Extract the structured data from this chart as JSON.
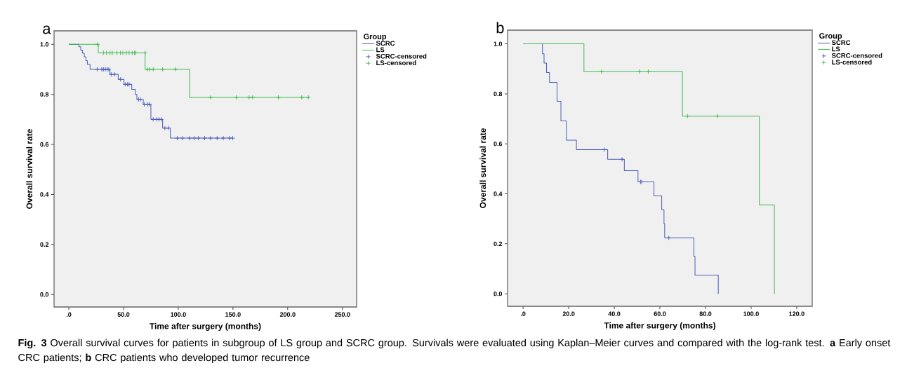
{
  "chart_data": [
    {
      "type": "step",
      "title": "a",
      "xlabel": "Time after surgery (months)",
      "ylabel": "Overall survival rate",
      "legend_title": "Group",
      "legend": "right",
      "xlim": [
        -13.5,
        263
      ],
      "ylim": [
        -0.05,
        1.054
      ],
      "xticks": [
        {
          "value": 0,
          "label": ".0"
        },
        {
          "value": 50,
          "label": "50.0"
        },
        {
          "value": 100,
          "label": "100.0"
        },
        {
          "value": 150,
          "label": "150.0"
        },
        {
          "value": 200,
          "label": "200.0"
        },
        {
          "value": 250,
          "label": "250.0"
        }
      ],
      "yticks": [
        {
          "value": 0,
          "label": "0.0"
        },
        {
          "value": 0.2,
          "label": "0.2"
        },
        {
          "value": 0.4,
          "label": "0.4"
        },
        {
          "value": 0.6,
          "label": "0.6"
        },
        {
          "value": 0.8,
          "label": "0.8"
        },
        {
          "value": 1,
          "label": "1.0"
        }
      ],
      "annotations": [
        "**Fig. 3** Overall survival curves for patients in subgroup of LS group and SCRC group. Survivals were evaluated using Kaplan–Meier curves and compared with the log-rank test. **a** Early onset CRC patients; **b** CRC patients who developed tumor recurrence"
      ],
      "series": [
        {
          "name": "SCRC",
          "marker": "none",
          "color": "#4a5cb8",
          "x": [
            0,
            9.2,
            10.9,
            12.4,
            14.1,
            15.6,
            16.9,
            19.4,
            37.6,
            45.1,
            50.4,
            57.5,
            60.7,
            62.2,
            68,
            75,
            85.7,
            92.7,
            149.8
          ],
          "values": [
            1,
            0.99,
            0.977,
            0.965,
            0.95,
            0.935,
            0.92,
            0.9,
            0.88,
            0.86,
            0.84,
            0.82,
            0.8,
            0.78,
            0.76,
            0.7,
            0.665,
            0.625,
            0.625
          ]
        },
        {
          "name": "LS",
          "marker": "none",
          "color": "#3dbb4c",
          "x": [
            0,
            26.9,
            69.7,
            110.3,
            220.3
          ],
          "values": [
            1,
            0.966,
            0.9,
            0.788,
            0.788
          ]
        },
        {
          "name": "SCRC-censored",
          "type": "scatter",
          "marker": "cross",
          "color": "#4a5cb8",
          "x": [
            25.9,
            30.1,
            31.6,
            33.3,
            35,
            36.5,
            38.7,
            41.9,
            47.2,
            51.5,
            53.6,
            55.1,
            63.7,
            65.4,
            69,
            72.2,
            73.9,
            77.1,
            80.3,
            82.5,
            84.6,
            87.8,
            91,
            99.1,
            103.8,
            110.3,
            114.5,
            118.4,
            124.1,
            129.5,
            135.5,
            141.2,
            146.6,
            149.8
          ],
          "values": [
            0.9,
            0.9,
            0.9,
            0.9,
            0.9,
            0.9,
            0.88,
            0.88,
            0.86,
            0.84,
            0.84,
            0.84,
            0.78,
            0.78,
            0.76,
            0.76,
            0.76,
            0.7,
            0.7,
            0.7,
            0.7,
            0.665,
            0.665,
            0.625,
            0.625,
            0.625,
            0.625,
            0.625,
            0.625,
            0.625,
            0.625,
            0.625,
            0.625,
            0.625
          ]
        },
        {
          "name": "LS-censored",
          "type": "scatter",
          "marker": "cross",
          "color": "#3dbb4c",
          "x": [
            26.3,
            31.6,
            34.4,
            37.6,
            39.7,
            44,
            47.2,
            49.4,
            52.6,
            55.1,
            57.9,
            60,
            61.1,
            69.7,
            71.8,
            73.9,
            77.1,
            85.7,
            97.4,
            129.5,
            153,
            164.7,
            167.9,
            191.5,
            212.8,
            218.8
          ],
          "values": [
            1,
            0.966,
            0.966,
            0.966,
            0.966,
            0.966,
            0.966,
            0.966,
            0.966,
            0.966,
            0.966,
            0.966,
            0.966,
            0.966,
            0.9,
            0.9,
            0.9,
            0.9,
            0.9,
            0.788,
            0.788,
            0.788,
            0.788,
            0.788,
            0.788,
            0.788
          ]
        }
      ]
    },
    {
      "type": "step",
      "title": "b",
      "xlabel": "Time after surgery (months)",
      "ylabel": "Overall survival rate",
      "legend_title": "Group",
      "legend": "right",
      "xlim": [
        -6.8,
        126.8
      ],
      "ylim": [
        -0.05,
        1.055
      ],
      "xticks": [
        {
          "value": 0,
          "label": ".0"
        },
        {
          "value": 20,
          "label": "20.0"
        },
        {
          "value": 40,
          "label": "40.0"
        },
        {
          "value": 60,
          "label": "60.0"
        },
        {
          "value": 80,
          "label": "80.0"
        },
        {
          "value": 100,
          "label": "100.0"
        },
        {
          "value": 120,
          "label": "120.0"
        }
      ],
      "yticks": [
        {
          "value": 0,
          "label": "0.0"
        },
        {
          "value": 0.2,
          "label": "0.2"
        },
        {
          "value": 0.4,
          "label": "0.4"
        },
        {
          "value": 0.6,
          "label": "0.6"
        },
        {
          "value": 0.8,
          "label": "0.8"
        },
        {
          "value": 1,
          "label": "1.0"
        }
      ],
      "series": [
        {
          "name": "SCRC",
          "marker": "none",
          "color": "#4a5cb8",
          "x": [
            0,
            8.5,
            9.2,
            10.3,
            11.6,
            14.9,
            16.6,
            19,
            23.4,
            37.1,
            44.4,
            50.4,
            57.4,
            60.8,
            61.8,
            62.1,
            74.9,
            75.4,
            85.6
          ],
          "values": [
            1,
            0.96,
            0.923,
            0.885,
            0.846,
            0.77,
            0.692,
            0.615,
            0.577,
            0.538,
            0.493,
            0.448,
            0.392,
            0.336,
            0.28,
            0.224,
            0.15,
            0.075,
            0
          ]
        },
        {
          "name": "LS",
          "marker": "none",
          "color": "#3dbb4c",
          "x": [
            0,
            26.7,
            69.9,
            103.6,
            110.2
          ],
          "values": [
            1,
            0.889,
            0.711,
            0.356,
            0
          ]
        },
        {
          "name": "SCRC-censored",
          "type": "scatter",
          "marker": "cross",
          "color": "#4a5cb8",
          "x": [
            35.6,
            43.4,
            51.5,
            52,
            63.9
          ],
          "values": [
            0.577,
            0.538,
            0.448,
            0.448,
            0.224
          ]
        },
        {
          "name": "LS-censored",
          "type": "scatter",
          "marker": "cross",
          "color": "#3dbb4c",
          "x": [
            34.4,
            51,
            54.9,
            72.1,
            85.3
          ],
          "values": [
            0.889,
            0.889,
            0.889,
            0.711,
            0.711
          ]
        }
      ]
    }
  ]
}
